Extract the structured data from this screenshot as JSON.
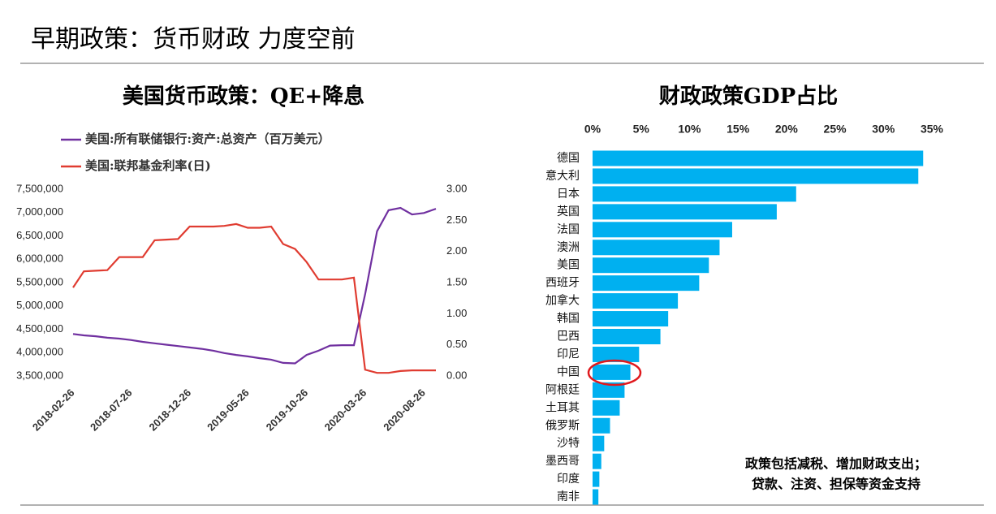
{
  "header": {
    "title": "早期政策：货币财政 力度空前"
  },
  "chart_data": [
    {
      "type": "line",
      "title": "美国货币政策：QE+降息",
      "legend": "top-left",
      "x": [
        "2018-02-26",
        "2018-03-26",
        "2018-04-26",
        "2018-05-26",
        "2018-06-26",
        "2018-07-26",
        "2018-08-26",
        "2018-09-26",
        "2018-10-26",
        "2018-11-26",
        "2018-12-26",
        "2019-01-26",
        "2019-02-26",
        "2019-03-26",
        "2019-04-26",
        "2019-05-26",
        "2019-06-26",
        "2019-07-26",
        "2019-08-26",
        "2019-09-26",
        "2019-10-26",
        "2019-11-26",
        "2019-12-26",
        "2020-01-26",
        "2020-02-26",
        "2020-03-26",
        "2020-04-26",
        "2020-05-26",
        "2020-06-26",
        "2020-07-26",
        "2020-08-26",
        "2020-09-26"
      ],
      "xticks": [
        "2018-02-26",
        "2018-07-26",
        "2018-12-26",
        "2019-05-26",
        "2019-10-26",
        "2020-03-26",
        "2020-08-26"
      ],
      "series": [
        {
          "name": "美国:所有联储银行:资产:总资产（百万美元）",
          "color": "#7030a0",
          "values": [
            4400000,
            4370000,
            4350000,
            4320000,
            4300000,
            4270000,
            4230000,
            4200000,
            4170000,
            4140000,
            4110000,
            4080000,
            4040000,
            3990000,
            3950000,
            3920000,
            3880000,
            3850000,
            3780000,
            3770000,
            3950000,
            4040000,
            4150000,
            4160000,
            4160000,
            5250000,
            6600000,
            7050000,
            7100000,
            6960000,
            6990000,
            7080000
          ]
        },
        {
          "name": "美国:联邦基金利率(日)",
          "color": "#e03c31",
          "axis": "y2",
          "values": [
            1.42,
            1.68,
            1.69,
            1.7,
            1.91,
            1.91,
            1.91,
            2.18,
            2.19,
            2.2,
            2.4,
            2.4,
            2.4,
            2.41,
            2.44,
            2.38,
            2.38,
            2.4,
            2.12,
            2.04,
            1.83,
            1.55,
            1.55,
            1.55,
            1.58,
            0.1,
            0.05,
            0.05,
            0.08,
            0.09,
            0.09,
            0.09
          ]
        }
      ],
      "ylim": [
        3500000,
        7500000
      ],
      "yticks": [
        {
          "value": 3500000,
          "label": "3,500,000"
        },
        {
          "value": 4000000,
          "label": "4,000,000"
        },
        {
          "value": 4500000,
          "label": "4,500,000"
        },
        {
          "value": 5000000,
          "label": "5,000,000"
        },
        {
          "value": 5500000,
          "label": "5,500,000"
        },
        {
          "value": 6000000,
          "label": "6,000,000"
        },
        {
          "value": 6500000,
          "label": "6,500,000"
        },
        {
          "value": 7000000,
          "label": "7,000,000"
        },
        {
          "value": 7500000,
          "label": "7,500,000"
        }
      ],
      "y2lim": [
        0,
        3
      ],
      "y2ticks": [
        {
          "value": 0,
          "label": "0.00"
        },
        {
          "value": 0.5,
          "label": "0.50"
        },
        {
          "value": 1,
          "label": "1.00"
        },
        {
          "value": 1.5,
          "label": "1.50"
        },
        {
          "value": 2,
          "label": "2.00"
        },
        {
          "value": 2.5,
          "label": "2.50"
        },
        {
          "value": 3,
          "label": "3.00"
        }
      ]
    },
    {
      "type": "hbar",
      "title": "财政政策GDP占比",
      "color": "#00b0f0",
      "categories": [
        "德国",
        "意大利",
        "日本",
        "英国",
        "法国",
        "澳洲",
        "美国",
        "西班牙",
        "加拿大",
        "韩国",
        "巴西",
        "印尼",
        "中国",
        "阿根廷",
        "土耳其",
        "俄罗斯",
        "沙特",
        "墨西哥",
        "印度",
        "南非"
      ],
      "values": [
        34.1,
        33.6,
        21.0,
        19.0,
        14.4,
        13.1,
        12.0,
        11.0,
        8.8,
        7.8,
        7.0,
        4.8,
        3.9,
        3.3,
        2.8,
        1.8,
        1.2,
        0.9,
        0.7,
        0.6
      ],
      "xlim": [
        0,
        35
      ],
      "xticks": [
        {
          "value": 0,
          "label": "0%"
        },
        {
          "value": 5,
          "label": "5%"
        },
        {
          "value": 10,
          "label": "10%"
        },
        {
          "value": 15,
          "label": "15%"
        },
        {
          "value": 20,
          "label": "20%"
        },
        {
          "value": 25,
          "label": "25%"
        },
        {
          "value": 30,
          "label": "30%"
        },
        {
          "value": 35,
          "label": "35%"
        }
      ],
      "annotations": [
        "政策包括减税、增加财政支出；",
        "贷款、注资、担保等资金支持"
      ]
    }
  ]
}
